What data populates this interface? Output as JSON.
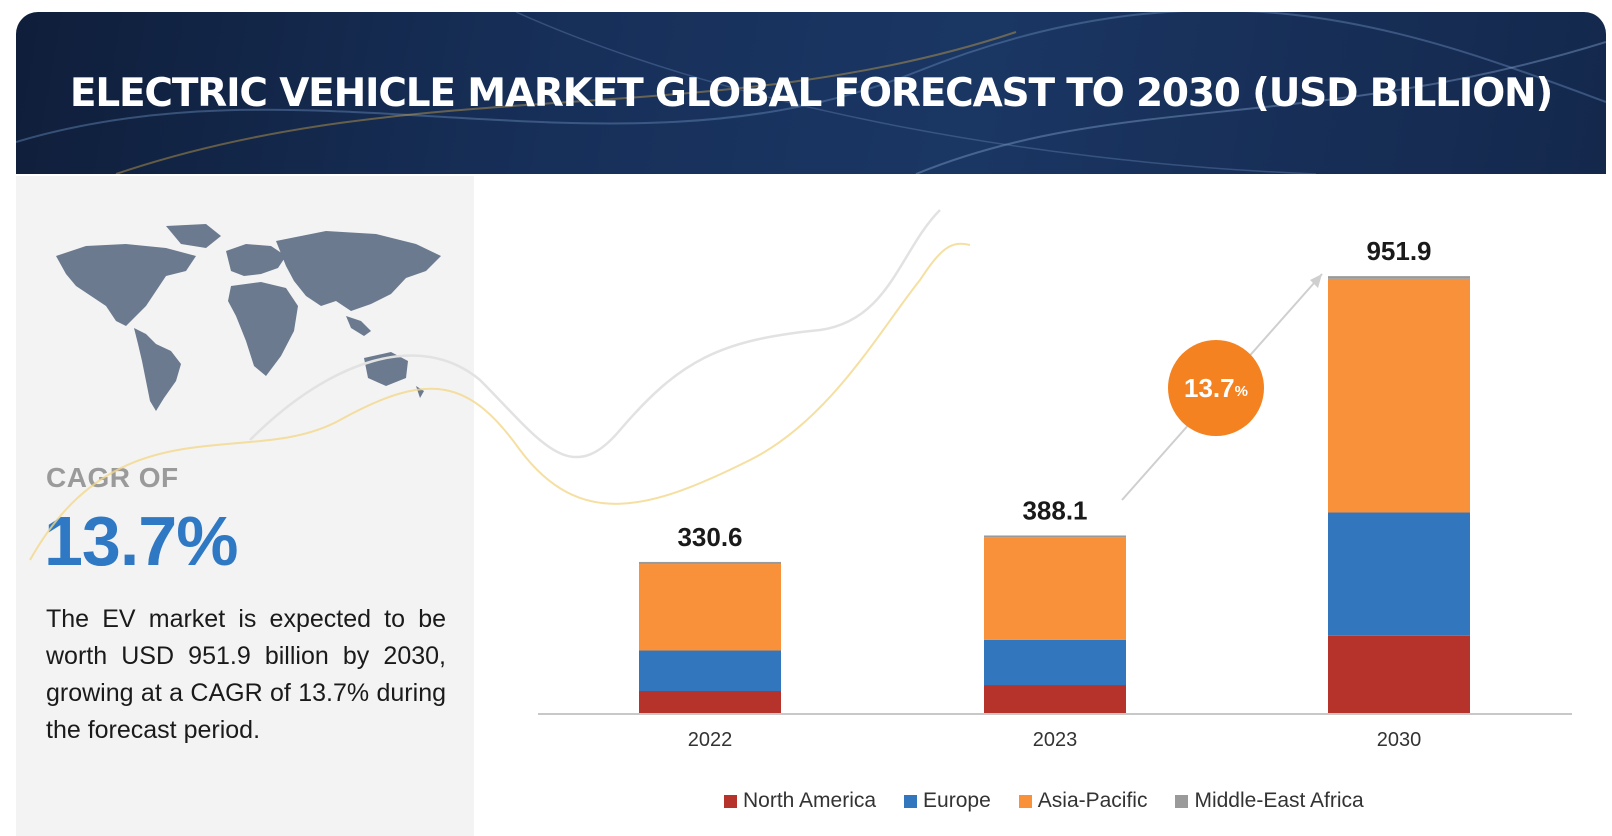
{
  "header": {
    "title": "ELECTRIC VEHICLE MARKET GLOBAL FORECAST TO 2030 (USD BILLION)"
  },
  "left_panel": {
    "cagr_label": "CAGR OF",
    "cagr_value": "13.7%",
    "description": "The EV market is expected to be worth USD 951.9 billion by 2030, growing at a CAGR of 13.7% during the forecast period."
  },
  "badge": {
    "value": "13.7",
    "unit": "%"
  },
  "colors": {
    "north_america": "#b5332a",
    "europe": "#3277be",
    "asia_pacific": "#f9913a",
    "middle_east_africa": "#9a9a9a"
  },
  "chart_data": {
    "type": "bar",
    "stacked": true,
    "categories": [
      "2022",
      "2023",
      "2030"
    ],
    "totals": [
      330.6,
      388.1,
      951.9
    ],
    "total_labels": [
      "330.6",
      "388.1",
      "951.9"
    ],
    "series": [
      {
        "name": "North America",
        "values": [
          50,
          63,
          170
        ]
      },
      {
        "name": "Europe",
        "values": [
          88,
          98,
          268
        ]
      },
      {
        "name": "Asia-Pacific",
        "values": [
          188,
          223,
          508
        ]
      },
      {
        "name": "Middle-East Africa",
        "values": [
          4.6,
          4.1,
          5.9
        ]
      }
    ],
    "ylim": [
      0,
      1000
    ],
    "grid": false,
    "legend_position": "bottom"
  }
}
